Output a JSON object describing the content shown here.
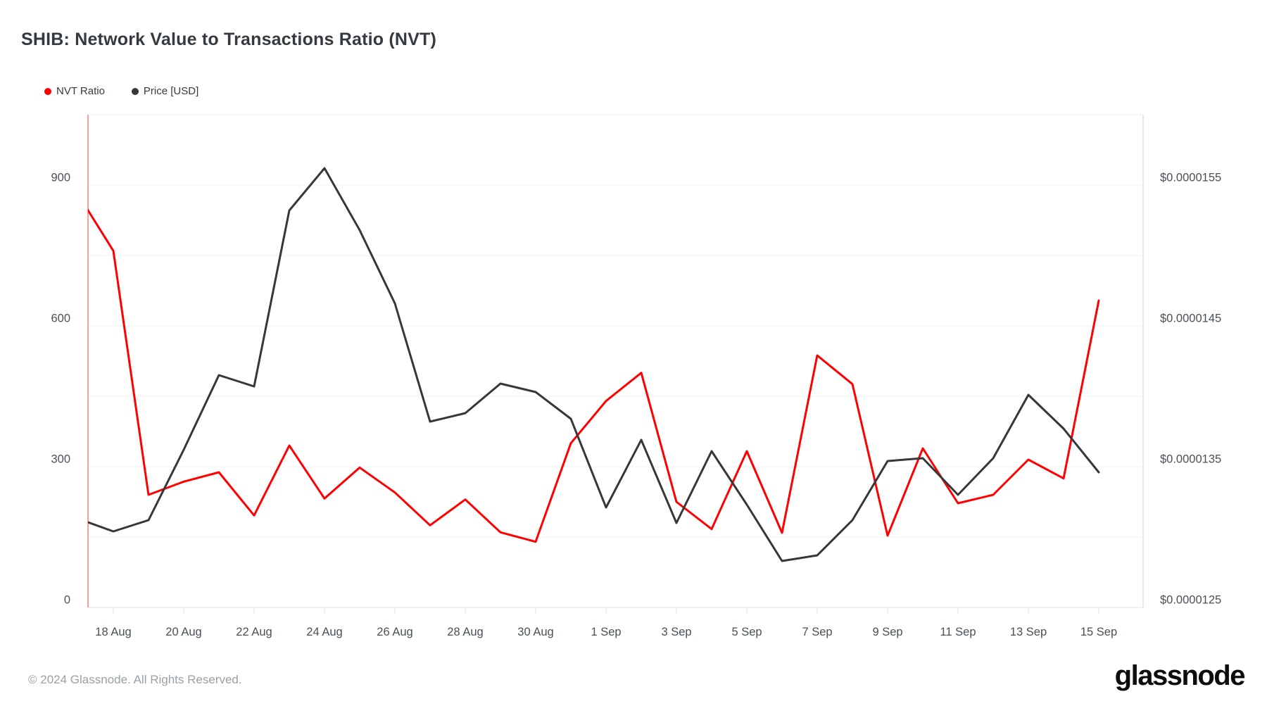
{
  "title": "SHIB: Network Value to Transactions Ratio (NVT)",
  "legend": {
    "items": [
      {
        "label": "NVT Ratio",
        "color": "#ff0000"
      },
      {
        "label": "Price [USD]",
        "color": "#36373b"
      }
    ]
  },
  "footer": {
    "copyright": "© 2024 Glassnode. All Rights Reserved.",
    "brand": "glassnode"
  },
  "colors": {
    "nvt_line": "#ff0000",
    "price_line": "#36373b",
    "gridline": "#f1f1f3",
    "axis_border_bottom": "#dfe1e5",
    "axis_border_right": "#cfd2d6",
    "axis_border_left_red": "#fa7f7f",
    "tick": "#dfe1e5",
    "label_text": "#495057"
  },
  "chart_data": {
    "type": "line",
    "title": "SHIB: Network Value to Transactions Ratio (NVT)",
    "grid": true,
    "legend_position": "top-left",
    "x": [
      "17 Aug",
      "18 Aug",
      "19 Aug",
      "20 Aug",
      "21 Aug",
      "22 Aug",
      "23 Aug",
      "24 Aug",
      "25 Aug",
      "26 Aug",
      "27 Aug",
      "28 Aug",
      "29 Aug",
      "30 Aug",
      "31 Aug",
      "1 Sep",
      "2 Sep",
      "3 Sep",
      "4 Sep",
      "5 Sep",
      "6 Sep",
      "7 Sep",
      "8 Sep",
      "9 Sep",
      "10 Sep",
      "11 Sep",
      "12 Sep",
      "13 Sep",
      "14 Sep",
      "15 Sep"
    ],
    "series": [
      {
        "name": "NVT Ratio",
        "axis": "left",
        "color": "#ff0000",
        "values": [
          880,
          760,
          240,
          268,
          288,
          196,
          345,
          232,
          298,
          245,
          175,
          230,
          160,
          140,
          350,
          440,
          500,
          225,
          167,
          333,
          159,
          537,
          476,
          153,
          339,
          222,
          240,
          315,
          275,
          654
        ]
      },
      {
        "name": "Price [USD]",
        "axis": "right",
        "color": "#36373b",
        "values": [
          1.313e-05,
          1.304e-05,
          1.312e-05,
          1.362e-05,
          1.415e-05,
          1.407e-05,
          1.532e-05,
          1.562e-05,
          1.518e-05,
          1.466e-05,
          1.382e-05,
          1.388e-05,
          1.409e-05,
          1.403e-05,
          1.384e-05,
          1.321e-05,
          1.369e-05,
          1.31e-05,
          1.361e-05,
          1.323e-05,
          1.283e-05,
          1.287e-05,
          1.312e-05,
          1.354e-05,
          1.356e-05,
          1.33e-05,
          1.356e-05,
          1.401e-05,
          1.377e-05,
          1.346e-05
        ]
      }
    ],
    "y_left": {
      "label": "NVT Ratio",
      "range": [
        0,
        1050
      ],
      "tick_values": [
        900,
        600,
        300,
        0
      ],
      "tick_labels": [
        "900",
        "600",
        "300",
        "0"
      ]
    },
    "y_right": {
      "label": "Price [USD]",
      "range": [
        1.25e-05,
        1.575e-05
      ],
      "tick_values": [
        1.55e-05,
        1.45e-05,
        1.35e-05,
        1.25e-05
      ],
      "tick_labels": [
        "$0.0000155",
        "$0.0000145",
        "$0.0000135",
        "$0.0000125"
      ]
    },
    "x_tick_labels": [
      "18 Aug",
      "20 Aug",
      "22 Aug",
      "24 Aug",
      "26 Aug",
      "28 Aug",
      "30 Aug",
      "1 Sep",
      "3 Sep",
      "5 Sep",
      "7 Sep",
      "9 Sep",
      "11 Sep",
      "13 Sep",
      "15 Sep"
    ],
    "x_tick_indices": [
      1,
      3,
      5,
      7,
      9,
      11,
      13,
      15,
      17,
      19,
      21,
      23,
      25,
      27,
      29
    ]
  }
}
